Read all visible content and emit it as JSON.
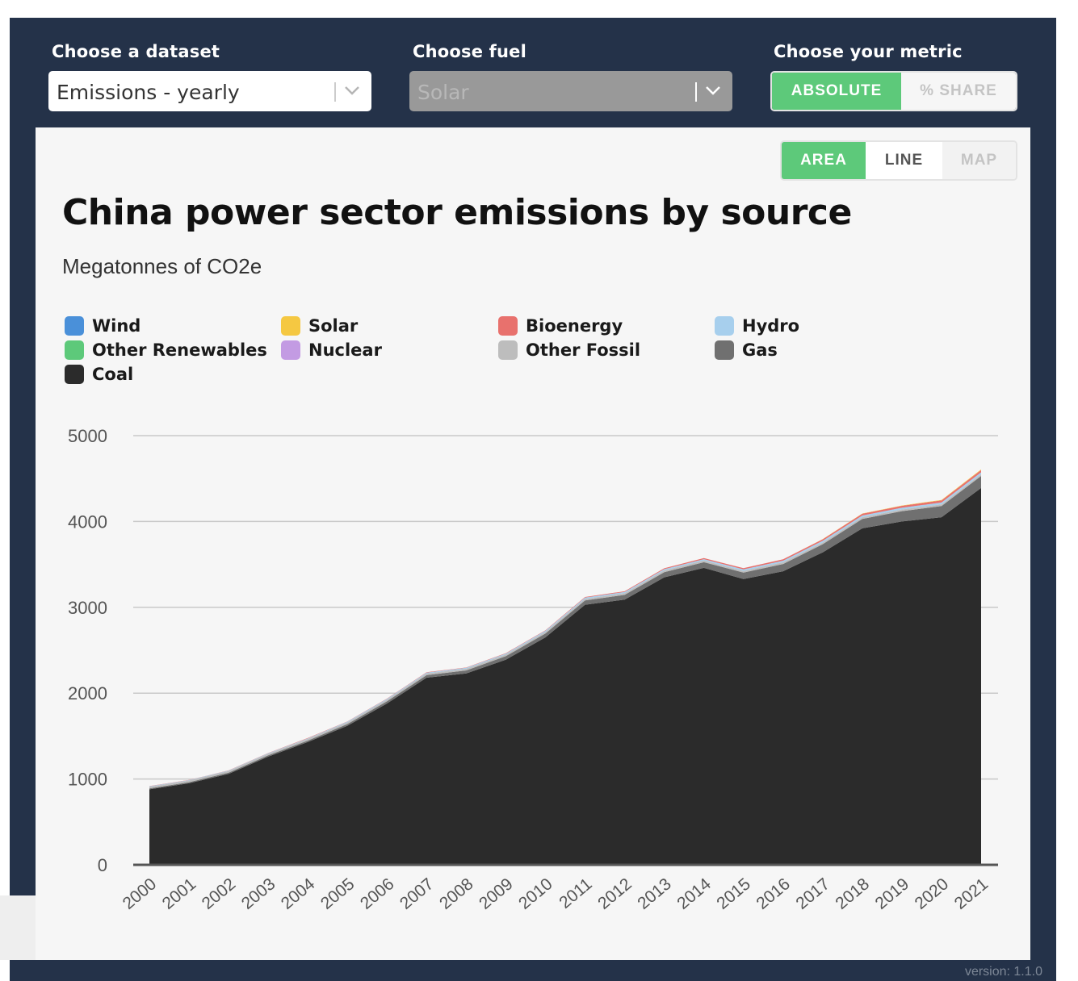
{
  "controls": {
    "dataset_label": "Choose a dataset",
    "dataset_value": "Emissions - yearly",
    "fuel_label": "Choose fuel",
    "fuel_value": "Solar",
    "metric_label": "Choose your metric",
    "metric_options": [
      "ABSOLUTE",
      "% SHARE"
    ],
    "metric_selected": "ABSOLUTE"
  },
  "view_toggle": {
    "options": [
      "AREA",
      "LINE",
      "MAP"
    ],
    "selected": "AREA"
  },
  "footer": {
    "version": "version: 1.1.0"
  },
  "colors": {
    "frame": "#243249",
    "accent_green": "#5dc97a",
    "wind": "#4a90d9",
    "solar": "#f5c842",
    "bioenergy": "#e8716d",
    "hydro": "#a7cfed",
    "other_renewables": "#5dc97a",
    "nuclear": "#c39be3",
    "other_fossil": "#bdbdbd",
    "gas": "#707070",
    "coal": "#2b2b2b"
  },
  "chart_data": {
    "type": "area",
    "stacked": true,
    "title": "China power sector emissions by source",
    "subtitle": "Megatonnes of CO2e",
    "xlabel": "",
    "ylabel": "",
    "ylim": [
      0,
      5000
    ],
    "yticks": [
      "0",
      "1000",
      "2000",
      "3000",
      "4000",
      "5000"
    ],
    "grid": true,
    "legend_position": "top",
    "categories": [
      "2000",
      "2001",
      "2002",
      "2003",
      "2004",
      "2005",
      "2006",
      "2007",
      "2008",
      "2009",
      "2010",
      "2011",
      "2012",
      "2013",
      "2014",
      "2015",
      "2016",
      "2017",
      "2018",
      "2019",
      "2020",
      "2021"
    ],
    "legend": [
      "Wind",
      "Solar",
      "Bioenergy",
      "Hydro",
      "Other Renewables",
      "Nuclear",
      "Other Fossil",
      "Gas",
      "Coal"
    ],
    "series": [
      {
        "name": "Coal",
        "color": "#2b2b2b",
        "values": [
          880,
          950,
          1060,
          1260,
          1430,
          1620,
          1880,
          2180,
          2230,
          2390,
          2650,
          3030,
          3090,
          3350,
          3460,
          3330,
          3420,
          3640,
          3920,
          4000,
          4050,
          4390
        ]
      },
      {
        "name": "Gas",
        "color": "#707070",
        "values": [
          10,
          12,
          14,
          15,
          17,
          20,
          25,
          30,
          35,
          40,
          45,
          50,
          55,
          60,
          65,
          75,
          85,
          95,
          110,
          120,
          130,
          140
        ]
      },
      {
        "name": "Other Fossil",
        "color": "#bdbdbd",
        "values": [
          20,
          20,
          20,
          20,
          20,
          20,
          20,
          20,
          20,
          20,
          20,
          20,
          20,
          20,
          20,
          20,
          20,
          20,
          20,
          20,
          20,
          20
        ]
      },
      {
        "name": "Nuclear",
        "color": "#c39be3",
        "values": [
          0,
          0,
          0,
          0,
          0,
          0,
          0,
          0,
          0,
          0,
          0,
          0,
          0,
          0,
          0,
          0,
          0,
          0,
          0,
          0,
          0,
          0
        ]
      },
      {
        "name": "Other Renewables",
        "color": "#5dc97a",
        "values": [
          0,
          0,
          0,
          0,
          0,
          0,
          0,
          0,
          0,
          0,
          0,
          0,
          0,
          0,
          0,
          0,
          0,
          0,
          0,
          0,
          0,
          0
        ]
      },
      {
        "name": "Hydro",
        "color": "#a7cfed",
        "values": [
          5,
          5,
          5,
          6,
          7,
          8,
          9,
          10,
          10,
          11,
          12,
          13,
          14,
          15,
          16,
          17,
          18,
          19,
          20,
          20,
          21,
          22
        ]
      },
      {
        "name": "Bioenergy",
        "color": "#e8716d",
        "values": [
          2,
          2,
          2,
          2,
          3,
          3,
          3,
          4,
          4,
          5,
          6,
          7,
          8,
          10,
          12,
          14,
          16,
          18,
          20,
          22,
          25,
          28
        ]
      },
      {
        "name": "Solar",
        "color": "#f5c842",
        "values": [
          0,
          0,
          0,
          0,
          0,
          0,
          0,
          0,
          0,
          0,
          0,
          0,
          0,
          0,
          0,
          0,
          0,
          2,
          3,
          4,
          5,
          6
        ]
      },
      {
        "name": "Wind",
        "color": "#4a90d9",
        "values": [
          0,
          0,
          0,
          0,
          0,
          0,
          0,
          0,
          0,
          0,
          0,
          0,
          0,
          0,
          0,
          0,
          0,
          0,
          0,
          0,
          0,
          0
        ]
      }
    ]
  }
}
